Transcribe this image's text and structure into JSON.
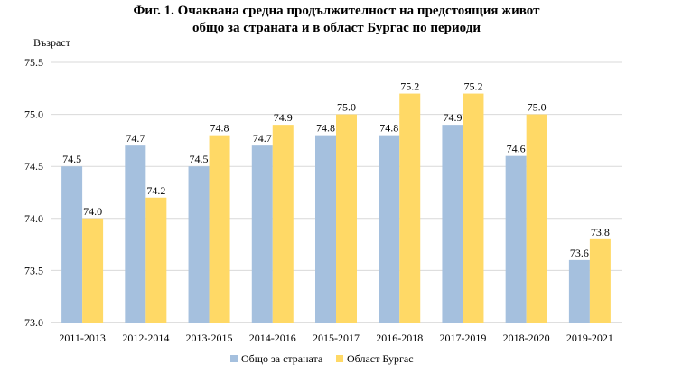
{
  "chart_data": {
    "type": "bar",
    "title_line1": "Фиг. 1. Очаквана средна продължителност на предстоящия живот",
    "title_line2": "общо за страната и в област Бургас по периоди",
    "ylabel": "Възраст",
    "xlabel": "",
    "ylim": [
      73.0,
      75.5
    ],
    "yticks": [
      "73.0",
      "73.5",
      "74.0",
      "74.5",
      "75.0",
      "75.5"
    ],
    "grid": true,
    "legend_position": "bottom",
    "categories": [
      "2011-2013",
      "2012-2014",
      "2013-2015",
      "2014-2016",
      "2015-2017",
      "2016-2018",
      "2017-2019",
      "2018-2020",
      "2019-2021"
    ],
    "series": [
      {
        "name": "Общо за страната",
        "color": "#a5c0de",
        "values": [
          74.5,
          74.7,
          74.5,
          74.7,
          74.8,
          74.8,
          74.9,
          74.6,
          73.6
        ],
        "labels": [
          "74.5",
          "74.7",
          "74.5",
          "74.7",
          "74.8",
          "74.8",
          "74.9",
          "74.6",
          "73.6"
        ]
      },
      {
        "name": "Област Бургас",
        "color": "#ffd966",
        "values": [
          74.0,
          74.2,
          74.8,
          74.9,
          75.0,
          75.2,
          75.2,
          75.0,
          73.8
        ],
        "labels": [
          "74.0",
          "74.2",
          "74.8",
          "74.9",
          "75.0",
          "75.2",
          "75.2",
          "75.0",
          "73.8"
        ]
      }
    ]
  }
}
